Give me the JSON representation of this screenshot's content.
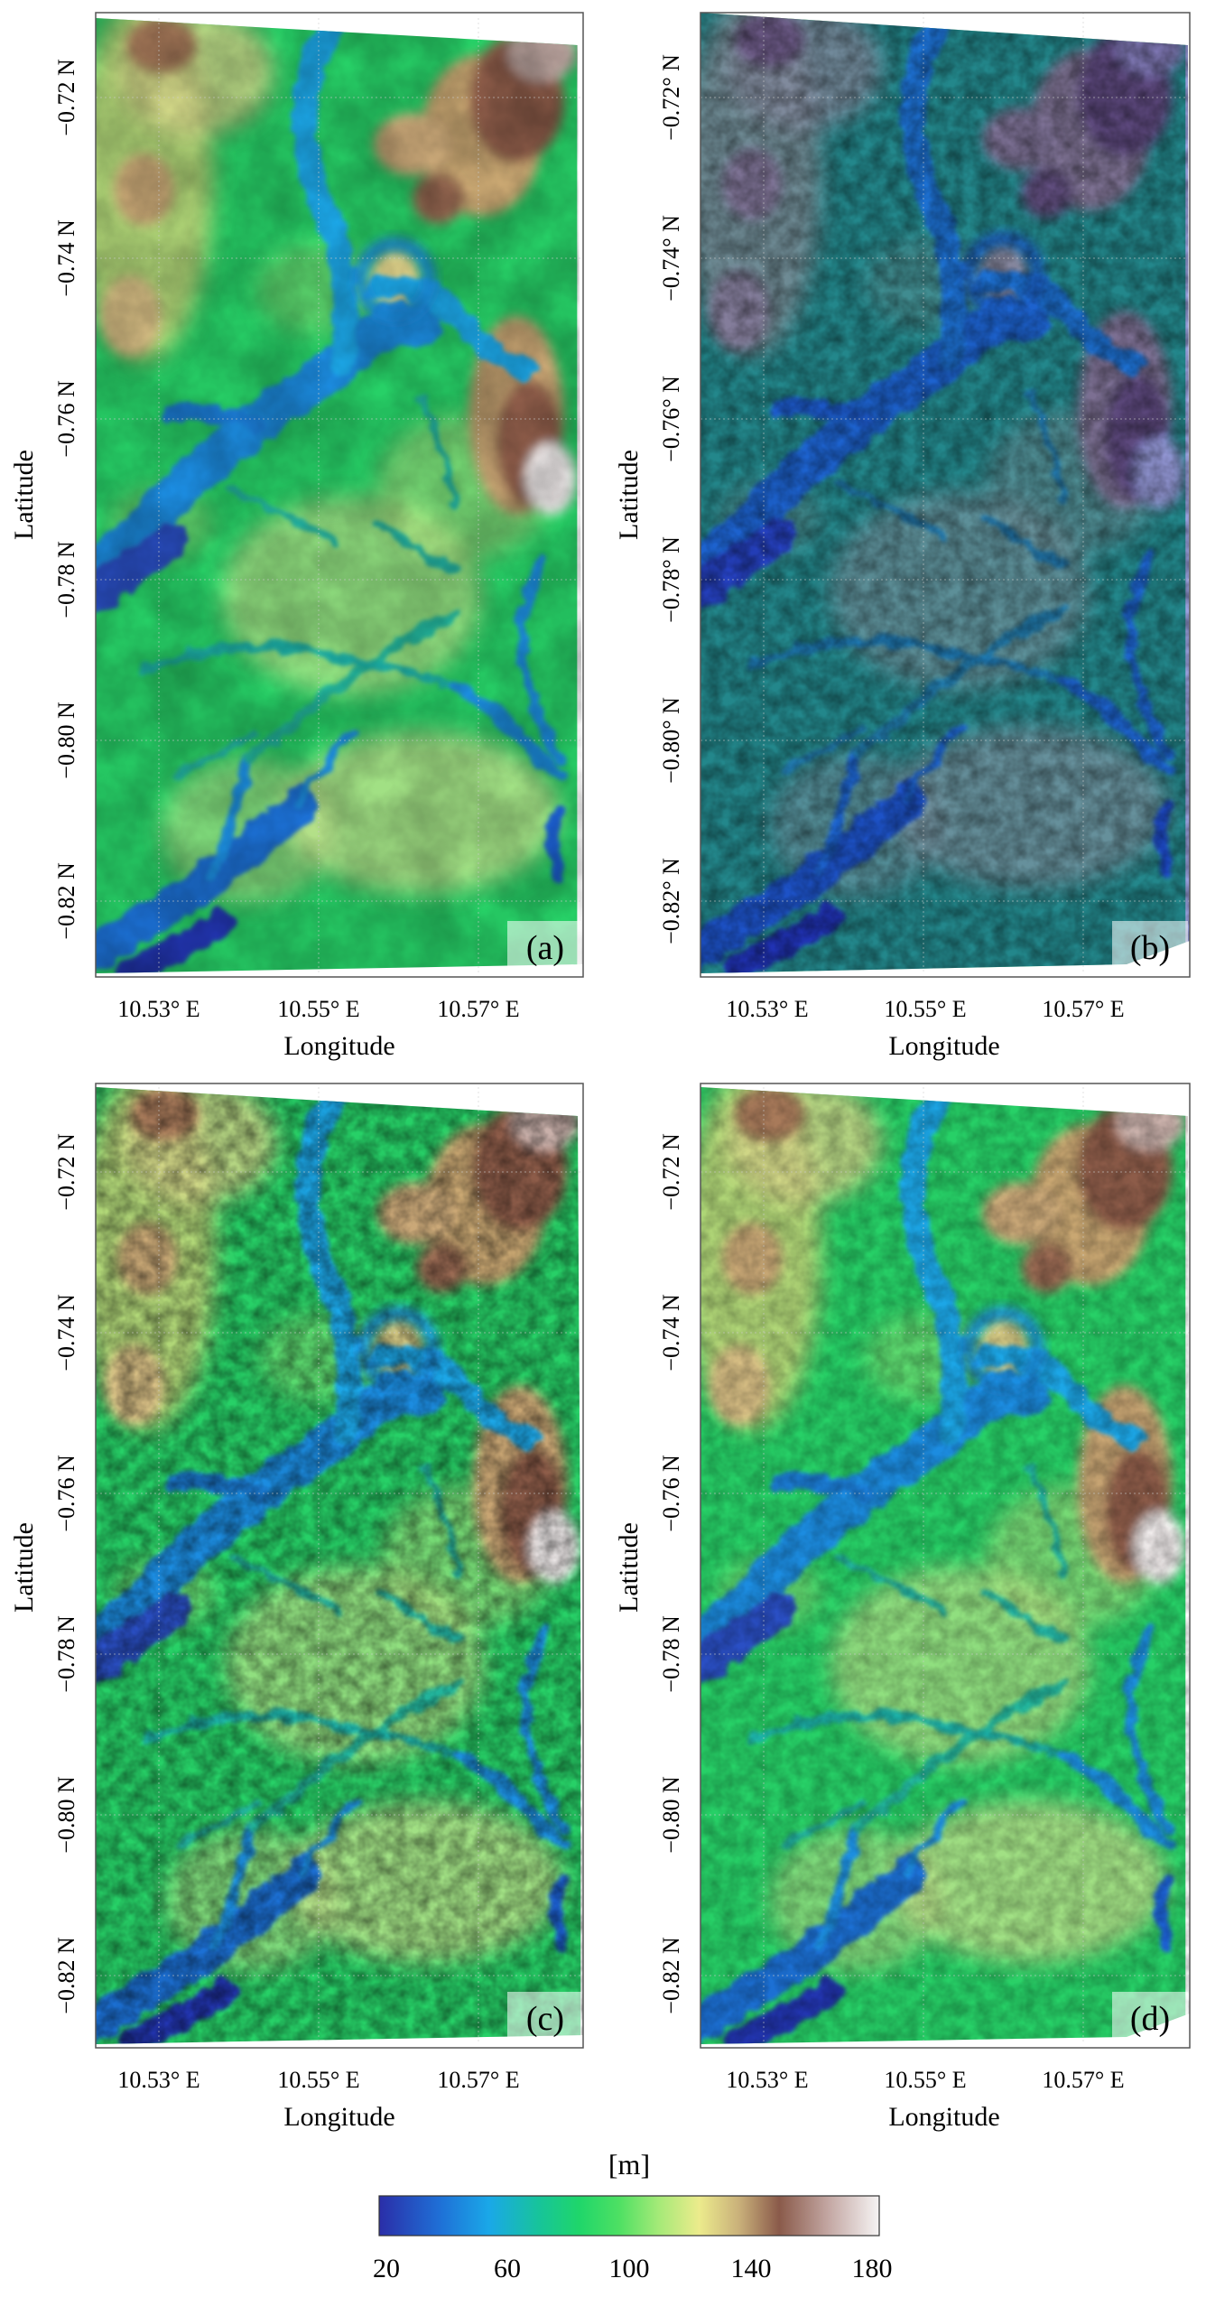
{
  "panels": [
    {
      "id": "a",
      "label": "(a)",
      "xlabel": "Longitude",
      "ylabel": "Latitude",
      "xticks": [
        "10.53° E",
        "10.55° E",
        "10.57° E"
      ],
      "yticks": [
        "−0.72 N",
        "−0.74 N",
        "−0.76 N",
        "−0.78 N",
        "−0.80 N",
        "−0.82 N"
      ],
      "style": "smooth"
    },
    {
      "id": "b",
      "label": "(b)",
      "xlabel": "Longitude",
      "ylabel": "Latitude",
      "xticks": [
        "10.53° E",
        "10.55° E",
        "10.57° E"
      ],
      "yticks": [
        "−0.72° N",
        "−0.74° N",
        "−0.76° N",
        "−0.78° N",
        "−0.80° N",
        "−0.82° N"
      ],
      "style": "low"
    },
    {
      "id": "c",
      "label": "(c)",
      "xlabel": "Longitude",
      "ylabel": "Latitude",
      "xticks": [
        "10.53° E",
        "10.55° E",
        "10.57° E"
      ],
      "yticks": [
        "−0.72 N",
        "−0.74 N",
        "−0.76 N",
        "−0.78 N",
        "−0.80 N",
        "−0.82 N"
      ],
      "style": "noisy"
    },
    {
      "id": "d",
      "label": "(d)",
      "xlabel": "Longitude",
      "ylabel": "Latitude",
      "xticks": [
        "10.53° E",
        "10.55° E",
        "10.57° E"
      ],
      "yticks": [
        "−0.72 N",
        "−0.74 N",
        "−0.76 N",
        "−0.78 N",
        "−0.80 N",
        "−0.82 N"
      ],
      "style": "medium"
    }
  ],
  "colorbar": {
    "title": "[m]",
    "ticks": [
      "20",
      "60",
      "100",
      "140",
      "180"
    ],
    "range": [
      20,
      180
    ],
    "stops": [
      "#2a2ea8",
      "#1f6fd6",
      "#1aa8e8",
      "#17c49a",
      "#1fd66a",
      "#4ee063",
      "#a6ea78",
      "#eceb8c",
      "#c9b07a",
      "#8a5a4a",
      "#c4a8a4",
      "#f6f4f4"
    ]
  }
}
